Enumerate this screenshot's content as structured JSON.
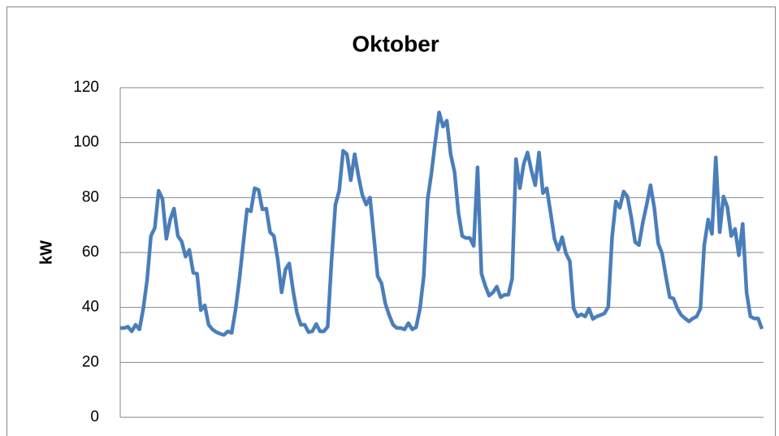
{
  "chart_data": {
    "type": "line",
    "title": "Oktober",
    "y_label": "kW",
    "ylim": [
      0,
      120
    ],
    "yticks": [
      0,
      20,
      40,
      60,
      80,
      100,
      120
    ],
    "grid": true,
    "series": [
      {
        "name": "kW",
        "color": "#4a7ebb",
        "values": [
          32.5,
          32.5,
          33,
          31.3,
          33.7,
          32,
          39.6,
          50,
          66,
          69,
          82.5,
          79.5,
          65,
          72,
          76,
          66,
          64,
          58.5,
          61,
          52.6,
          52.3,
          39,
          40.8,
          33.7,
          32,
          31,
          30.4,
          30,
          31.3,
          30.7,
          39,
          50,
          63,
          75.7,
          75,
          83.4,
          82.8,
          75.7,
          76,
          67.4,
          66,
          57.3,
          45.5,
          53.8,
          56,
          46,
          38,
          33.7,
          33.7,
          31,
          31.3,
          34,
          31.3,
          31.3,
          33,
          57.3,
          77.4,
          82.5,
          97,
          95.8,
          86.3,
          95.8,
          87.8,
          81,
          77.4,
          80,
          66,
          51.4,
          48.8,
          41.4,
          37.2,
          33.7,
          32.5,
          32.5,
          32,
          34.3,
          32,
          32.8,
          39.6,
          51.4,
          79.2,
          89,
          100.5,
          111,
          105.8,
          108,
          95.8,
          89.3,
          74.5,
          66,
          65.3,
          65.3,
          62.4,
          91,
          52.3,
          47.9,
          44.3,
          45.5,
          47.6,
          43.7,
          44.6,
          44.6,
          50.5,
          94,
          83.4,
          92.2,
          96.4,
          89.9,
          84.5,
          96.4,
          81.6,
          83.4,
          74.5,
          65,
          61,
          65.6,
          59.7,
          56.8,
          39.6,
          36.7,
          37.5,
          36.7,
          39.6,
          35.8,
          36.7,
          37.2,
          37.8,
          40.2,
          65.6,
          78.6,
          76.3,
          82.2,
          80.4,
          72.7,
          63.8,
          62.7,
          71,
          77.4,
          84.5,
          76.3,
          63.3,
          59.7,
          51.4,
          43.7,
          43.2,
          39.6,
          37.2,
          36,
          34.9,
          36,
          36.7,
          39.6,
          62.7,
          72,
          66.8,
          94.6,
          67.4,
          80.4,
          76.6,
          66,
          68.6,
          59,
          70.4,
          45.5,
          36.7,
          36,
          36,
          32.2
        ]
      }
    ]
  }
}
